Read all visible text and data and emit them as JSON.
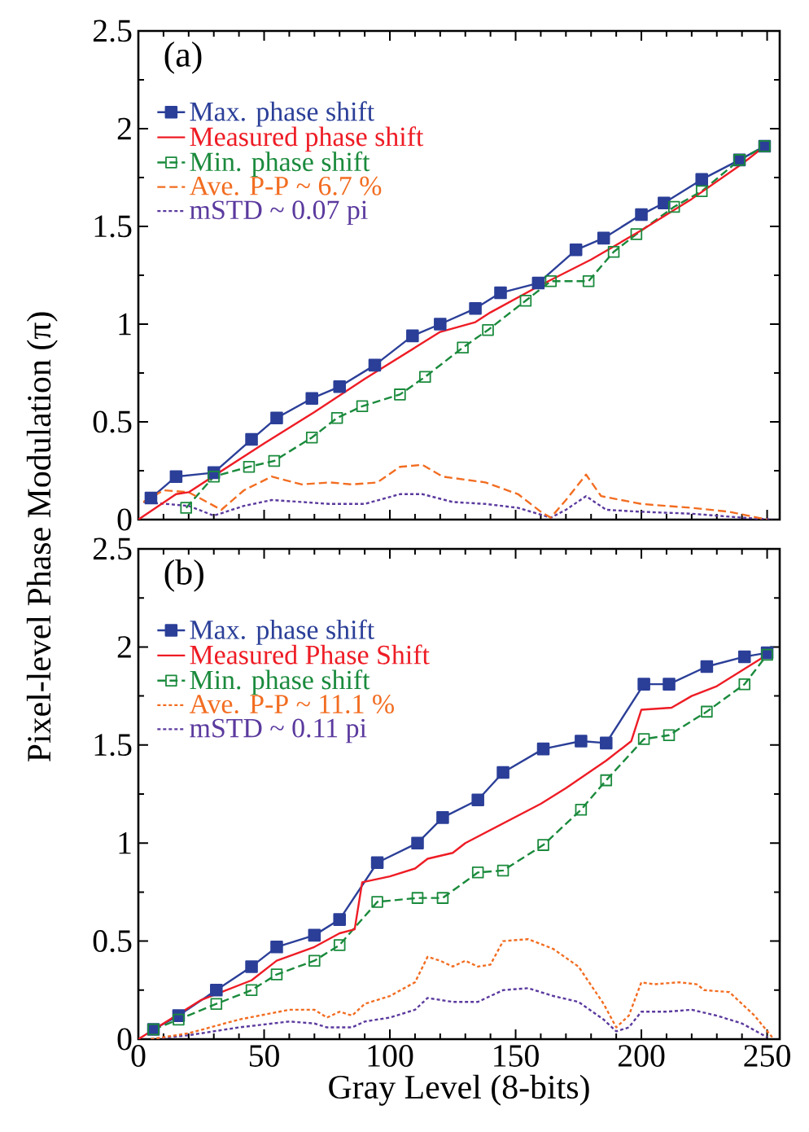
{
  "chart_data": [
    {
      "type": "line",
      "ylabel": "Pixel-level Phase Modulation (π)",
      "annotations": [
        "(a)"
      ],
      "xlim": [
        0,
        255
      ],
      "xticks": [
        0,
        50,
        100,
        150,
        200,
        250
      ],
      "ylim": [
        0,
        2.5
      ],
      "yticks": [
        0,
        0.5,
        1,
        1.5,
        2,
        2.5
      ],
      "tick_labels": "y",
      "legend": "top left",
      "series": [
        {
          "name": "Max. phase shift",
          "color": "#2b3f98",
          "marker": "square",
          "line_style": "solid",
          "x": [
            5,
            15,
            30,
            45,
            55,
            69,
            80,
            94,
            109,
            120,
            134,
            144,
            159,
            174,
            185,
            200,
            209,
            224,
            239,
            249
          ],
          "values": [
            0.11,
            0.22,
            0.24,
            0.41,
            0.52,
            0.62,
            0.68,
            0.79,
            0.94,
            1.0,
            1.08,
            1.16,
            1.21,
            1.38,
            1.44,
            1.56,
            1.62,
            1.74,
            1.84,
            1.91
          ]
        },
        {
          "name": "Measured phase shift",
          "color": "#ee1c25",
          "line_style": "solid",
          "x": [
            0,
            15,
            20,
            50,
            70,
            90,
            110,
            120,
            134,
            140,
            160,
            180,
            200,
            220,
            240,
            249
          ],
          "values": [
            0,
            0.13,
            0.14,
            0.39,
            0.55,
            0.72,
            0.88,
            0.96,
            1.01,
            1.06,
            1.2,
            1.33,
            1.48,
            1.64,
            1.82,
            1.91
          ]
        },
        {
          "name": "Min. phase shift",
          "color": "#1a8a3c",
          "marker": "square",
          "line_style": "dashed",
          "x": [
            19,
            30,
            44,
            54,
            69,
            79,
            89,
            104,
            114,
            129,
            139,
            154,
            164,
            179,
            189,
            198,
            213,
            224,
            239,
            249
          ],
          "values": [
            0.06,
            0.22,
            0.27,
            0.3,
            0.42,
            0.52,
            0.58,
            0.64,
            0.73,
            0.88,
            0.97,
            1.12,
            1.22,
            1.22,
            1.37,
            1.46,
            1.6,
            1.68,
            1.84,
            1.91
          ]
        },
        {
          "name": "Ave. P-P ~ 6.7 %",
          "color": "#f26d21",
          "line_style": "dashed",
          "x": [
            2,
            10,
            20,
            33,
            42,
            53,
            65,
            76,
            85,
            95,
            104,
            113,
            121,
            138,
            151,
            160,
            164,
            170,
            178,
            184,
            200,
            220,
            235,
            250
          ],
          "values": [
            0.09,
            0.15,
            0.14,
            0.05,
            0.15,
            0.22,
            0.18,
            0.19,
            0.18,
            0.19,
            0.27,
            0.28,
            0.22,
            0.19,
            0.13,
            0.04,
            0.01,
            0.1,
            0.23,
            0.12,
            0.08,
            0.06,
            0.04,
            0
          ]
        },
        {
          "name": "mSTD ~ 0.07 pi",
          "color": "#5b3a9e",
          "line_style": "dotted",
          "x": [
            2,
            20,
            30,
            42,
            53,
            65,
            76,
            90,
            104,
            113,
            125,
            138,
            151,
            164,
            170,
            178,
            186,
            200,
            220,
            240,
            252
          ],
          "values": [
            0.09,
            0.07,
            0.02,
            0.07,
            0.1,
            0.09,
            0.08,
            0.08,
            0.13,
            0.13,
            0.09,
            0.08,
            0.06,
            0.01,
            0.05,
            0.12,
            0.05,
            0.04,
            0.03,
            0.01,
            0
          ]
        }
      ]
    },
    {
      "type": "line",
      "xlabel": "Gray Level (8-bits)",
      "annotations": [
        "(b)"
      ],
      "xlim": [
        0,
        255
      ],
      "xticks": [
        0,
        50,
        100,
        150,
        200,
        250
      ],
      "ylim": [
        0,
        2.5
      ],
      "yticks": [
        0,
        0.5,
        1,
        1.5,
        2,
        2.5
      ],
      "legend": "top left",
      "series": [
        {
          "name": "Max. phase shift",
          "color": "#2b3f98",
          "marker": "square",
          "line_style": "solid",
          "x": [
            6,
            16,
            31,
            45,
            55,
            70,
            80,
            95,
            111,
            121,
            135,
            145,
            161,
            176,
            186,
            201,
            211,
            226,
            241,
            250
          ],
          "values": [
            0.05,
            0.12,
            0.25,
            0.37,
            0.47,
            0.53,
            0.61,
            0.9,
            1.0,
            1.13,
            1.22,
            1.36,
            1.48,
            1.52,
            1.51,
            1.81,
            1.81,
            1.9,
            1.95,
            1.97
          ]
        },
        {
          "name": "Measured Phase Shift",
          "color": "#ee1c25",
          "line_style": "solid",
          "x": [
            0,
            25,
            31,
            45,
            55,
            70,
            80,
            86,
            89,
            100,
            110,
            115,
            125,
            130,
            145,
            160,
            170,
            186,
            196,
            200,
            212,
            220,
            230,
            240,
            250
          ],
          "values": [
            0,
            0.2,
            0.23,
            0.3,
            0.4,
            0.47,
            0.54,
            0.56,
            0.8,
            0.83,
            0.87,
            0.92,
            0.95,
            1.0,
            1.1,
            1.2,
            1.28,
            1.42,
            1.52,
            1.68,
            1.69,
            1.75,
            1.8,
            1.88,
            1.96
          ]
        },
        {
          "name": "Min. phase shift",
          "color": "#1a8a3c",
          "marker": "square",
          "line_style": "dashed",
          "x": [
            6,
            16,
            31,
            45,
            55,
            70,
            80,
            95,
            111,
            121,
            135,
            145,
            161,
            176,
            186,
            201,
            211,
            226,
            241,
            250
          ],
          "values": [
            0.05,
            0.1,
            0.18,
            0.25,
            0.33,
            0.4,
            0.48,
            0.7,
            0.72,
            0.72,
            0.85,
            0.86,
            0.99,
            1.17,
            1.32,
            1.53,
            1.55,
            1.67,
            1.81,
            1.96
          ]
        },
        {
          "name": "Ave. P-P ~ 11.1 %",
          "color": "#f26d21",
          "line_style": "dotted",
          "x": [
            5,
            20,
            40,
            60,
            70,
            75,
            80,
            85,
            90,
            100,
            110,
            115,
            120,
            125,
            130,
            135,
            140,
            145,
            155,
            165,
            175,
            185,
            190,
            195,
            200,
            205,
            215,
            222,
            225,
            235,
            245,
            252
          ],
          "values": [
            0,
            0.03,
            0.1,
            0.15,
            0.15,
            0.11,
            0.14,
            0.12,
            0.18,
            0.22,
            0.29,
            0.42,
            0.4,
            0.37,
            0.4,
            0.37,
            0.38,
            0.5,
            0.51,
            0.46,
            0.37,
            0.18,
            0.06,
            0.12,
            0.29,
            0.28,
            0.29,
            0.28,
            0.25,
            0.24,
            0.12,
            0.01
          ]
        },
        {
          "name": "mSTD ~ 0.11 pi",
          "color": "#5b3a9e",
          "line_style": "dotted",
          "x": [
            5,
            20,
            40,
            60,
            70,
            75,
            85,
            90,
            100,
            110,
            115,
            125,
            135,
            145,
            155,
            165,
            175,
            185,
            190,
            195,
            200,
            210,
            220,
            230,
            240,
            250
          ],
          "values": [
            0,
            0.02,
            0.06,
            0.09,
            0.08,
            0.06,
            0.06,
            0.09,
            0.11,
            0.15,
            0.21,
            0.19,
            0.19,
            0.25,
            0.26,
            0.22,
            0.19,
            0.1,
            0.04,
            0.06,
            0.14,
            0.14,
            0.15,
            0.12,
            0.08,
            0.01
          ]
        }
      ]
    }
  ]
}
